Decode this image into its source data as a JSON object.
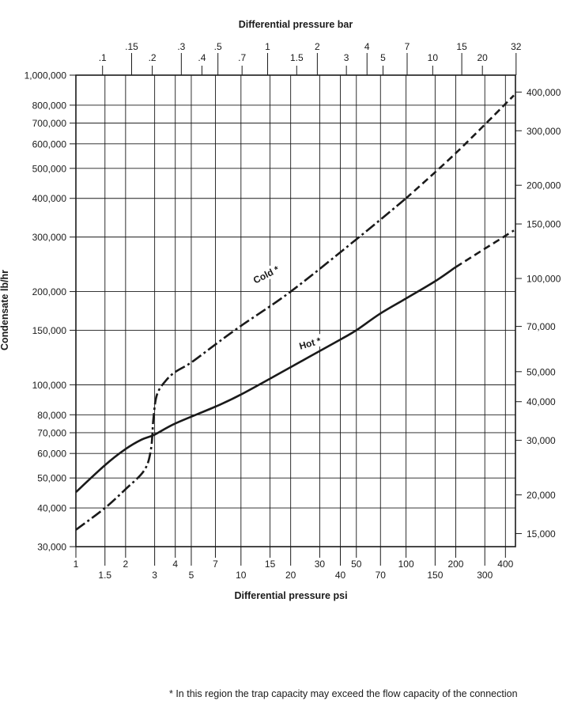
{
  "chart_data": {
    "type": "line",
    "title": "Differential pressure bar",
    "xlabel": "Differential pressure psi",
    "ylabel": "Condensate lb/hr",
    "x_scale": "log",
    "y_scale": "log",
    "xlim": [
      1,
      460
    ],
    "ylim": [
      30000,
      1000000
    ],
    "grid": true,
    "bottom_ticks_row1": [
      {
        "v": 1,
        "l": "1"
      },
      {
        "v": 2,
        "l": "2"
      },
      {
        "v": 4,
        "l": "4"
      },
      {
        "v": 7,
        "l": "7"
      },
      {
        "v": 15,
        "l": "15"
      },
      {
        "v": 30,
        "l": "30"
      },
      {
        "v": 50,
        "l": "50"
      },
      {
        "v": 100,
        "l": "100"
      },
      {
        "v": 200,
        "l": "200"
      },
      {
        "v": 400,
        "l": "400"
      }
    ],
    "bottom_ticks_row2": [
      {
        "v": 1.5,
        "l": "1.5"
      },
      {
        "v": 3,
        "l": "3"
      },
      {
        "v": 5,
        "l": "5"
      },
      {
        "v": 10,
        "l": "10"
      },
      {
        "v": 20,
        "l": "20"
      },
      {
        "v": 40,
        "l": "40"
      },
      {
        "v": 70,
        "l": "70"
      },
      {
        "v": 150,
        "l": "150"
      },
      {
        "v": 300,
        "l": "300"
      }
    ],
    "top_ticks_row1": [
      {
        "v": 0.15,
        "l": ".15"
      },
      {
        "v": 0.3,
        "l": ".3"
      },
      {
        "v": 0.5,
        "l": ".5"
      },
      {
        "v": 1,
        "l": "1"
      },
      {
        "v": 2,
        "l": "2"
      },
      {
        "v": 4,
        "l": "4"
      },
      {
        "v": 7,
        "l": "7"
      },
      {
        "v": 15,
        "l": "15"
      },
      {
        "v": 32,
        "l": "32"
      }
    ],
    "top_ticks_row2": [
      {
        "v": 0.1,
        "l": ".1"
      },
      {
        "v": 0.2,
        "l": ".2"
      },
      {
        "v": 0.4,
        "l": ".4"
      },
      {
        "v": 0.7,
        "l": ".7"
      },
      {
        "v": 1.5,
        "l": "1.5"
      },
      {
        "v": 3,
        "l": "3"
      },
      {
        "v": 5,
        "l": "5"
      },
      {
        "v": 10,
        "l": "10"
      },
      {
        "v": 20,
        "l": "20"
      }
    ],
    "left_ticks": [
      {
        "v": 30000,
        "l": "30,000"
      },
      {
        "v": 40000,
        "l": "40,000"
      },
      {
        "v": 50000,
        "l": "50,000"
      },
      {
        "v": 60000,
        "l": "60,000"
      },
      {
        "v": 70000,
        "l": "70,000"
      },
      {
        "v": 80000,
        "l": "80,000"
      },
      {
        "v": 100000,
        "l": "100,000"
      },
      {
        "v": 150000,
        "l": "150,000"
      },
      {
        "v": 200000,
        "l": "200,000"
      },
      {
        "v": 300000,
        "l": "300,000"
      },
      {
        "v": 400000,
        "l": "400,000"
      },
      {
        "v": 500000,
        "l": "500,000"
      },
      {
        "v": 600000,
        "l": "600,000"
      },
      {
        "v": 700000,
        "l": "700,000"
      },
      {
        "v": 800000,
        "l": "800,000"
      },
      {
        "v": 1000000,
        "l": "1,000,000"
      }
    ],
    "right_ticks": [
      {
        "v": 15000,
        "l": "15,000"
      },
      {
        "v": 20000,
        "l": "20,000"
      },
      {
        "v": 30000,
        "l": "30,000"
      },
      {
        "v": 40000,
        "l": "40,000"
      },
      {
        "v": 50000,
        "l": "50,000"
      },
      {
        "v": 70000,
        "l": "70,000"
      },
      {
        "v": 100000,
        "l": "100,000"
      },
      {
        "v": 150000,
        "l": "150,000"
      },
      {
        "v": 200000,
        "l": "200,000"
      },
      {
        "v": 300000,
        "l": "300,000"
      },
      {
        "v": 400000,
        "l": "400,000"
      }
    ],
    "series": [
      {
        "name": "Hot *",
        "style": "solid",
        "dashed_from_x": 200,
        "x": [
          1,
          1.5,
          2,
          2.5,
          3,
          4,
          7,
          10,
          20,
          40,
          50,
          70,
          100,
          150,
          200,
          300,
          450
        ],
        "y": [
          45000,
          55000,
          62000,
          66500,
          69000,
          75000,
          85000,
          93000,
          114000,
          140000,
          150000,
          170000,
          190000,
          216000,
          240000,
          275000,
          315000
        ]
      },
      {
        "name": "Cold *",
        "style": "dash-dot",
        "dashed_from_x": 100,
        "x": [
          1,
          1.5,
          2,
          2.6,
          2.85,
          2.95,
          3.1,
          3.5,
          4,
          5,
          7,
          10,
          20,
          50,
          100,
          200,
          450
        ],
        "y": [
          34000,
          40000,
          46000,
          53000,
          62000,
          78000,
          93000,
          103000,
          110000,
          118000,
          135000,
          155000,
          200000,
          295000,
          400000,
          560000,
          860000
        ]
      }
    ],
    "footnote": "* In this region the trap capacity may exceed the flow capacity of the connection"
  }
}
